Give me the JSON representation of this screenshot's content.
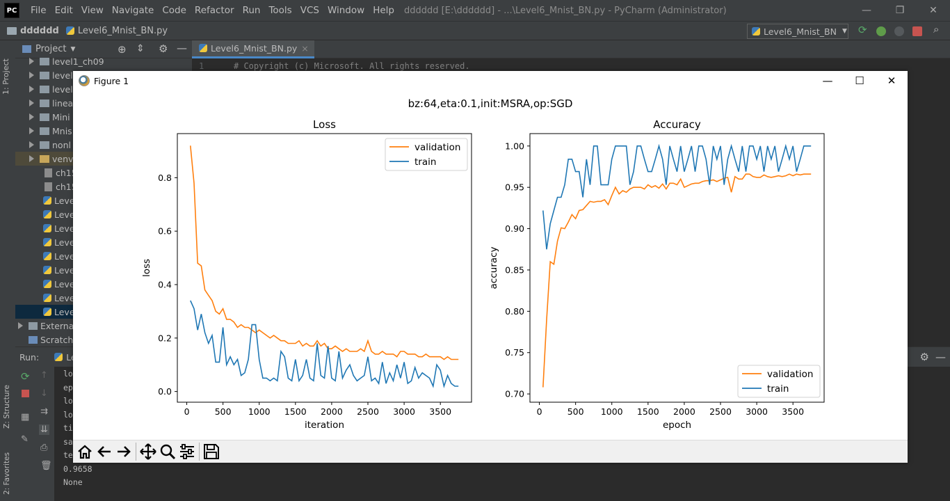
{
  "app": {
    "logo": "PC",
    "menu": [
      "File",
      "Edit",
      "View",
      "Navigate",
      "Code",
      "Refactor",
      "Run",
      "Tools",
      "VCS",
      "Window",
      "Help"
    ],
    "window_title": "dddddd [E:\\dddddd] - ...\\Level6_Mnist_BN.py - PyCharm (Administrator)",
    "win_controls": {
      "minimize": "—",
      "restore": "❐",
      "close": "✕"
    }
  },
  "navbar": {
    "breadcrumb_folder": "dddddd",
    "breadcrumb_file": "Level6_Mnist_BN.py",
    "run_config": "Level6_Mnist_BN"
  },
  "project": {
    "title": "Project",
    "side_tab": "1: Project",
    "items": [
      {
        "type": "folder",
        "label": "level1_ch09"
      },
      {
        "type": "folder",
        "label": "level"
      },
      {
        "type": "folder",
        "label": "level"
      },
      {
        "type": "folder",
        "label": "linea"
      },
      {
        "type": "folder",
        "label": "Mini"
      },
      {
        "type": "folder",
        "label": "Mnis"
      },
      {
        "type": "folder",
        "label": "nonl"
      },
      {
        "type": "folder",
        "label": "venv"
      },
      {
        "type": "file",
        "label": "ch15"
      },
      {
        "type": "file",
        "label": "ch15"
      },
      {
        "type": "py",
        "label": "Leve"
      },
      {
        "type": "py",
        "label": "Leve"
      },
      {
        "type": "py",
        "label": "Leve"
      },
      {
        "type": "py",
        "label": "Leve"
      },
      {
        "type": "py",
        "label": "Leve"
      },
      {
        "type": "py",
        "label": "Leve"
      },
      {
        "type": "py",
        "label": "Leve"
      },
      {
        "type": "py",
        "label": "Leve"
      },
      {
        "type": "py",
        "label": "Leve"
      }
    ],
    "external": "Externa",
    "scratch": "Scratch"
  },
  "editor": {
    "tab_label": "Level6_Mnist_BN.py",
    "tab_close": "×",
    "line_number": "1",
    "line_text": "# Copyright (c) Microsoft. All rights reserved."
  },
  "run": {
    "label": "Run:",
    "tab": "Le",
    "console_lines": [
      "lo",
      "ep",
      "lo",
      "lo",
      "ti",
      "sa",
      "te",
      "0.9658",
      "None"
    ],
    "side_tabs": [
      "Z: Structure",
      "2: Favorites"
    ]
  },
  "figure": {
    "window_title": "Figure 1",
    "controls": {
      "minimize": "—",
      "maximize": "☐",
      "close": "✕"
    },
    "toolbar": [
      "home-icon",
      "back-icon",
      "forward-icon",
      "pan-icon",
      "zoom-icon",
      "configure-icon",
      "save-icon"
    ]
  },
  "chart_data": [
    {
      "type": "line",
      "suptitle": "bz:64,eta:0.1,init:MSRA,op:SGD",
      "title": "Loss",
      "xlabel": "iteration",
      "ylabel": "loss",
      "xlim": [
        -130,
        3930
      ],
      "ylim": [
        -0.04,
        0.965
      ],
      "xticks": [
        0,
        500,
        1000,
        1500,
        2000,
        2500,
        3000,
        3500
      ],
      "yticks": [
        0.0,
        0.2,
        0.4,
        0.6,
        0.8
      ],
      "ytick_labels": [
        "0.0",
        "0.2",
        "0.4",
        "0.6",
        "0.8"
      ],
      "legend_position": "top-right",
      "series": [
        {
          "name": "validation",
          "color": "#ff7f0e",
          "x": [
            50,
            100,
            150,
            200,
            250,
            300,
            350,
            400,
            450,
            500,
            550,
            600,
            650,
            700,
            750,
            800,
            850,
            900,
            950,
            1000,
            1050,
            1100,
            1150,
            1200,
            1250,
            1300,
            1350,
            1400,
            1450,
            1500,
            1550,
            1600,
            1650,
            1700,
            1750,
            1800,
            1850,
            1900,
            1950,
            2000,
            2050,
            2100,
            2150,
            2200,
            2250,
            2300,
            2350,
            2400,
            2450,
            2500,
            2550,
            2600,
            2650,
            2700,
            2750,
            2800,
            2850,
            2900,
            2950,
            3000,
            3050,
            3100,
            3150,
            3200,
            3250,
            3300,
            3350,
            3400,
            3450,
            3500,
            3550,
            3600,
            3650,
            3700,
            3750
          ],
          "y": [
            0.92,
            0.78,
            0.48,
            0.47,
            0.38,
            0.36,
            0.34,
            0.3,
            0.29,
            0.31,
            0.27,
            0.27,
            0.26,
            0.24,
            0.25,
            0.24,
            0.24,
            0.23,
            0.22,
            0.23,
            0.22,
            0.21,
            0.2,
            0.21,
            0.2,
            0.19,
            0.19,
            0.18,
            0.18,
            0.18,
            0.19,
            0.17,
            0.18,
            0.17,
            0.17,
            0.19,
            0.17,
            0.18,
            0.16,
            0.16,
            0.17,
            0.16,
            0.15,
            0.16,
            0.15,
            0.15,
            0.15,
            0.16,
            0.15,
            0.19,
            0.15,
            0.14,
            0.14,
            0.15,
            0.14,
            0.14,
            0.14,
            0.13,
            0.15,
            0.15,
            0.14,
            0.14,
            0.14,
            0.13,
            0.13,
            0.14,
            0.13,
            0.13,
            0.13,
            0.13,
            0.12,
            0.13,
            0.12,
            0.12,
            0.12
          ]
        },
        {
          "name": "train",
          "color": "#1f77b4",
          "x": [
            50,
            100,
            150,
            200,
            250,
            300,
            350,
            400,
            450,
            500,
            550,
            600,
            650,
            700,
            750,
            800,
            850,
            900,
            950,
            1000,
            1050,
            1100,
            1150,
            1200,
            1250,
            1300,
            1350,
            1400,
            1450,
            1500,
            1550,
            1600,
            1650,
            1700,
            1750,
            1800,
            1850,
            1900,
            1950,
            2000,
            2050,
            2100,
            2150,
            2200,
            2250,
            2300,
            2350,
            2400,
            2450,
            2500,
            2550,
            2600,
            2650,
            2700,
            2750,
            2800,
            2850,
            2900,
            2950,
            3000,
            3050,
            3100,
            3150,
            3200,
            3250,
            3300,
            3350,
            3400,
            3450,
            3500,
            3550,
            3600,
            3650,
            3700,
            3750
          ],
          "y": [
            0.34,
            0.31,
            0.23,
            0.29,
            0.22,
            0.18,
            0.21,
            0.11,
            0.11,
            0.24,
            0.1,
            0.13,
            0.1,
            0.12,
            0.06,
            0.07,
            0.12,
            0.25,
            0.25,
            0.12,
            0.05,
            0.05,
            0.04,
            0.05,
            0.04,
            0.15,
            0.13,
            0.05,
            0.04,
            0.12,
            0.04,
            0.06,
            0.12,
            0.05,
            0.04,
            0.18,
            0.06,
            0.05,
            0.17,
            0.05,
            0.04,
            0.15,
            0.05,
            0.08,
            0.1,
            0.06,
            0.04,
            0.05,
            0.06,
            0.13,
            0.04,
            0.05,
            0.03,
            0.11,
            0.03,
            0.07,
            0.04,
            0.1,
            0.05,
            0.11,
            0.03,
            0.04,
            0.09,
            0.05,
            0.07,
            0.06,
            0.05,
            0.02,
            0.1,
            0.08,
            0.02,
            0.06,
            0.03,
            0.02,
            0.02
          ]
        }
      ]
    },
    {
      "type": "line",
      "title": "Accuracy",
      "xlabel": "epoch",
      "ylabel": "accuracy",
      "xlim": [
        -130,
        3930
      ],
      "ylim": [
        0.69,
        1.015
      ],
      "xticks": [
        0,
        500,
        1000,
        1500,
        2000,
        2500,
        3000,
        3500
      ],
      "yticks": [
        0.7,
        0.75,
        0.8,
        0.85,
        0.9,
        0.95,
        1.0
      ],
      "ytick_labels": [
        "0.70",
        "0.75",
        "0.80",
        "0.85",
        "0.90",
        "0.95",
        "1.00"
      ],
      "legend_position": "lower-right",
      "series": [
        {
          "name": "validation",
          "color": "#ff7f0e",
          "x": [
            50,
            100,
            150,
            200,
            250,
            300,
            350,
            400,
            450,
            500,
            550,
            600,
            650,
            700,
            750,
            800,
            850,
            900,
            950,
            1000,
            1050,
            1100,
            1150,
            1200,
            1250,
            1300,
            1350,
            1400,
            1450,
            1500,
            1550,
            1600,
            1650,
            1700,
            1750,
            1800,
            1850,
            1900,
            1950,
            2000,
            2050,
            2100,
            2150,
            2200,
            2250,
            2300,
            2350,
            2400,
            2450,
            2500,
            2550,
            2600,
            2650,
            2700,
            2750,
            2800,
            2850,
            2900,
            2950,
            3000,
            3050,
            3100,
            3150,
            3200,
            3250,
            3300,
            3350,
            3400,
            3450,
            3500,
            3550,
            3600,
            3650,
            3700,
            3750
          ],
          "y": [
            0.708,
            0.79,
            0.86,
            0.857,
            0.885,
            0.901,
            0.9,
            0.908,
            0.917,
            0.912,
            0.922,
            0.923,
            0.928,
            0.933,
            0.932,
            0.933,
            0.933,
            0.935,
            0.929,
            0.94,
            0.95,
            0.942,
            0.946,
            0.944,
            0.948,
            0.95,
            0.95,
            0.95,
            0.948,
            0.953,
            0.95,
            0.952,
            0.949,
            0.954,
            0.948,
            0.955,
            0.955,
            0.953,
            0.96,
            0.95,
            0.952,
            0.954,
            0.955,
            0.955,
            0.957,
            0.958,
            0.958,
            0.959,
            0.957,
            0.959,
            0.961,
            0.962,
            0.944,
            0.963,
            0.96,
            0.96,
            0.966,
            0.966,
            0.963,
            0.962,
            0.962,
            0.965,
            0.963,
            0.962,
            0.963,
            0.964,
            0.963,
            0.964,
            0.966,
            0.964,
            0.966,
            0.965,
            0.966,
            0.966,
            0.966
          ]
        },
        {
          "name": "train",
          "color": "#1f77b4",
          "x": [
            50,
            100,
            150,
            200,
            250,
            300,
            350,
            400,
            450,
            500,
            550,
            600,
            650,
            700,
            750,
            800,
            850,
            900,
            950,
            1000,
            1050,
            1100,
            1150,
            1200,
            1250,
            1300,
            1350,
            1400,
            1450,
            1500,
            1550,
            1600,
            1650,
            1700,
            1750,
            1800,
            1850,
            1900,
            1950,
            2000,
            2050,
            2100,
            2150,
            2200,
            2250,
            2300,
            2350,
            2400,
            2450,
            2500,
            2550,
            2600,
            2650,
            2700,
            2750,
            2800,
            2850,
            2900,
            2950,
            3000,
            3050,
            3100,
            3150,
            3200,
            3250,
            3300,
            3350,
            3400,
            3450,
            3500,
            3550,
            3600,
            3650,
            3700,
            3750
          ],
          "y": [
            0.922,
            0.875,
            0.906,
            0.922,
            0.938,
            0.938,
            0.953,
            0.984,
            0.984,
            0.969,
            0.969,
            0.938,
            0.984,
            0.953,
            1.0,
            1.0,
            0.953,
            0.953,
            0.953,
            0.984,
            1.0,
            1.0,
            1.0,
            1.0,
            0.953,
            0.969,
            1.0,
            1.0,
            0.984,
            0.969,
            0.969,
            0.984,
            1.0,
            0.984,
            0.953,
            1.0,
            0.984,
            0.969,
            1.0,
            0.969,
            0.984,
            1.0,
            0.969,
            1.0,
            1.0,
            0.984,
            0.953,
            1.0,
            0.984,
            1.0,
            0.953,
            0.984,
            1.0,
            0.984,
            0.969,
            1.0,
            0.969,
            1.0,
            1.0,
            0.984,
            1.0,
            0.969,
            1.0,
            0.984,
            1.0,
            0.969,
            0.984,
            1.0,
            0.984,
            1.0,
            0.969,
            0.984,
            1.0,
            1.0,
            1.0
          ]
        }
      ]
    }
  ]
}
